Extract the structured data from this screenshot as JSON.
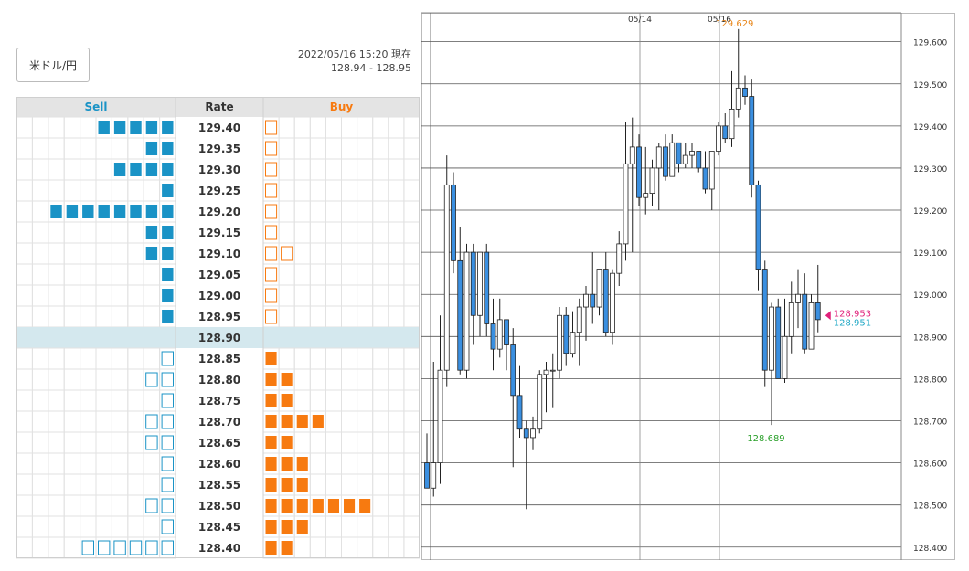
{
  "header": {
    "pair_label": "米ドル/円",
    "datetime": "2022/05/16 15:20 現在",
    "bid_ask": "128.94 - 128.95"
  },
  "order_book": {
    "columns": {
      "sell": "Sell",
      "rate": "Rate",
      "buy": "Buy"
    },
    "current_rate": "128.90",
    "rows": [
      {
        "rate": "129.40",
        "sell": 5,
        "buy": 1
      },
      {
        "rate": "129.35",
        "sell": 2,
        "buy": 1
      },
      {
        "rate": "129.30",
        "sell": 4,
        "buy": 1
      },
      {
        "rate": "129.25",
        "sell": 1,
        "buy": 1
      },
      {
        "rate": "129.20",
        "sell": 8,
        "buy": 1
      },
      {
        "rate": "129.15",
        "sell": 2,
        "buy": 1
      },
      {
        "rate": "129.10",
        "sell": 2,
        "buy": 2
      },
      {
        "rate": "129.05",
        "sell": 1,
        "buy": 1
      },
      {
        "rate": "129.00",
        "sell": 1,
        "buy": 1
      },
      {
        "rate": "128.95",
        "sell": 1,
        "buy": 1
      },
      {
        "rate": "128.90",
        "sell": 0,
        "buy": 0,
        "current": true
      },
      {
        "rate": "128.85",
        "sell": 1,
        "buy": 1
      },
      {
        "rate": "128.80",
        "sell": 2,
        "buy": 2
      },
      {
        "rate": "128.75",
        "sell": 1,
        "buy": 2
      },
      {
        "rate": "128.70",
        "sell": 2,
        "buy": 4
      },
      {
        "rate": "128.65",
        "sell": 2,
        "buy": 2
      },
      {
        "rate": "128.60",
        "sell": 1,
        "buy": 3
      },
      {
        "rate": "128.55",
        "sell": 1,
        "buy": 3
      },
      {
        "rate": "128.50",
        "sell": 2,
        "buy": 7
      },
      {
        "rate": "128.45",
        "sell": 1,
        "buy": 3
      },
      {
        "rate": "128.40",
        "sell": 6,
        "buy": 2
      }
    ],
    "colors": {
      "sell": "#1a93c6",
      "buy": "#f77a10",
      "current_row": "#d4e8ee",
      "header_bg": "#e4e4e4"
    }
  },
  "chart_data": {
    "type": "candlestick",
    "ylim": [
      128.38,
      129.66
    ],
    "y_ticks": [
      "129.600",
      "129.500",
      "129.400",
      "129.300",
      "129.200",
      "129.100",
      "129.000",
      "128.900",
      "128.800",
      "128.700",
      "128.600",
      "128.500",
      "128.400"
    ],
    "x_date_labels": [
      {
        "label": "05/14",
        "index": 32
      },
      {
        "label": "05/16",
        "index": 44
      }
    ],
    "annotations": {
      "high": "129.629",
      "low": "128.689",
      "ask": "128.953",
      "bid": "128.951"
    },
    "colors": {
      "up": "#ffffff",
      "down": "#3a8fe0",
      "high": "#e8861a",
      "low": "#2aa02a",
      "ask": "#e0207a",
      "bid": "#1ea7c5"
    },
    "candles": [
      {
        "o": 128.6,
        "h": 128.67,
        "l": 128.54,
        "c": 128.54
      },
      {
        "o": 128.54,
        "h": 128.84,
        "l": 128.52,
        "c": 128.6
      },
      {
        "o": 128.6,
        "h": 128.95,
        "l": 128.55,
        "c": 128.82
      },
      {
        "o": 128.82,
        "h": 129.33,
        "l": 128.78,
        "c": 129.26
      },
      {
        "o": 129.26,
        "h": 129.29,
        "l": 129.05,
        "c": 129.08
      },
      {
        "o": 129.08,
        "h": 129.16,
        "l": 128.81,
        "c": 128.82
      },
      {
        "o": 128.82,
        "h": 129.12,
        "l": 128.8,
        "c": 129.1
      },
      {
        "o": 129.1,
        "h": 129.12,
        "l": 128.88,
        "c": 128.95
      },
      {
        "o": 128.95,
        "h": 129.1,
        "l": 128.9,
        "c": 129.1
      },
      {
        "o": 129.1,
        "h": 129.12,
        "l": 128.9,
        "c": 128.93
      },
      {
        "o": 128.93,
        "h": 128.99,
        "l": 128.82,
        "c": 128.87
      },
      {
        "o": 128.87,
        "h": 128.99,
        "l": 128.85,
        "c": 128.94
      },
      {
        "o": 128.94,
        "h": 128.94,
        "l": 128.82,
        "c": 128.88
      },
      {
        "o": 128.88,
        "h": 128.92,
        "l": 128.59,
        "c": 128.76
      },
      {
        "o": 128.76,
        "h": 128.83,
        "l": 128.66,
        "c": 128.68
      },
      {
        "o": 128.68,
        "h": 128.7,
        "l": 128.49,
        "c": 128.66
      },
      {
        "o": 128.66,
        "h": 128.71,
        "l": 128.63,
        "c": 128.68
      },
      {
        "o": 128.68,
        "h": 128.82,
        "l": 128.67,
        "c": 128.81
      },
      {
        "o": 128.81,
        "h": 128.84,
        "l": 128.72,
        "c": 128.82
      },
      {
        "o": 128.82,
        "h": 128.86,
        "l": 128.73,
        "c": 128.82
      },
      {
        "o": 128.82,
        "h": 128.97,
        "l": 128.8,
        "c": 128.95
      },
      {
        "o": 128.95,
        "h": 128.97,
        "l": 128.83,
        "c": 128.86
      },
      {
        "o": 128.86,
        "h": 128.96,
        "l": 128.85,
        "c": 128.91
      },
      {
        "o": 128.91,
        "h": 128.99,
        "l": 128.83,
        "c": 128.97
      },
      {
        "o": 128.97,
        "h": 129.02,
        "l": 128.89,
        "c": 129.0
      },
      {
        "o": 129.0,
        "h": 129.1,
        "l": 128.93,
        "c": 128.97
      },
      {
        "o": 128.97,
        "h": 129.06,
        "l": 128.95,
        "c": 129.06
      },
      {
        "o": 129.06,
        "h": 129.1,
        "l": 128.9,
        "c": 128.91
      },
      {
        "o": 128.91,
        "h": 129.06,
        "l": 128.88,
        "c": 129.05
      },
      {
        "o": 129.05,
        "h": 129.15,
        "l": 129.02,
        "c": 129.12
      },
      {
        "o": 129.12,
        "h": 129.41,
        "l": 129.08,
        "c": 129.31
      },
      {
        "o": 129.31,
        "h": 129.42,
        "l": 129.1,
        "c": 129.35
      },
      {
        "o": 129.35,
        "h": 129.38,
        "l": 129.21,
        "c": 129.23
      },
      {
        "o": 129.23,
        "h": 129.35,
        "l": 129.19,
        "c": 129.24
      },
      {
        "o": 129.24,
        "h": 129.32,
        "l": 129.21,
        "c": 129.3
      },
      {
        "o": 129.3,
        "h": 129.36,
        "l": 129.2,
        "c": 129.35
      },
      {
        "o": 129.35,
        "h": 129.38,
        "l": 129.27,
        "c": 129.28
      },
      {
        "o": 129.28,
        "h": 129.38,
        "l": 129.28,
        "c": 129.36
      },
      {
        "o": 129.36,
        "h": 129.36,
        "l": 129.29,
        "c": 129.31
      },
      {
        "o": 129.31,
        "h": 129.36,
        "l": 129.3,
        "c": 129.33
      },
      {
        "o": 129.33,
        "h": 129.36,
        "l": 129.3,
        "c": 129.34
      },
      {
        "o": 129.34,
        "h": 129.34,
        "l": 129.29,
        "c": 129.3
      },
      {
        "o": 129.3,
        "h": 129.34,
        "l": 129.24,
        "c": 129.25
      },
      {
        "o": 129.25,
        "h": 129.34,
        "l": 129.2,
        "c": 129.34
      },
      {
        "o": 129.34,
        "h": 129.41,
        "l": 129.33,
        "c": 129.4
      },
      {
        "o": 129.4,
        "h": 129.43,
        "l": 129.36,
        "c": 129.37
      },
      {
        "o": 129.37,
        "h": 129.53,
        "l": 129.35,
        "c": 129.44
      },
      {
        "o": 129.44,
        "h": 129.63,
        "l": 129.42,
        "c": 129.49
      },
      {
        "o": 129.49,
        "h": 129.52,
        "l": 129.45,
        "c": 129.47
      },
      {
        "o": 129.47,
        "h": 129.51,
        "l": 129.23,
        "c": 129.26
      },
      {
        "o": 129.26,
        "h": 129.27,
        "l": 129.01,
        "c": 129.06
      },
      {
        "o": 129.06,
        "h": 129.08,
        "l": 128.78,
        "c": 128.82
      },
      {
        "o": 128.82,
        "h": 128.98,
        "l": 128.69,
        "c": 128.97
      },
      {
        "o": 128.97,
        "h": 128.99,
        "l": 128.8,
        "c": 128.8
      },
      {
        "o": 128.8,
        "h": 128.99,
        "l": 128.79,
        "c": 128.9
      },
      {
        "o": 128.9,
        "h": 129.03,
        "l": 128.86,
        "c": 128.98
      },
      {
        "o": 128.98,
        "h": 129.06,
        "l": 128.92,
        "c": 129.0
      },
      {
        "o": 129.0,
        "h": 129.05,
        "l": 128.86,
        "c": 128.87
      },
      {
        "o": 128.87,
        "h": 129.0,
        "l": 128.88,
        "c": 128.98
      },
      {
        "o": 128.98,
        "h": 129.07,
        "l": 128.91,
        "c": 128.94
      }
    ]
  }
}
